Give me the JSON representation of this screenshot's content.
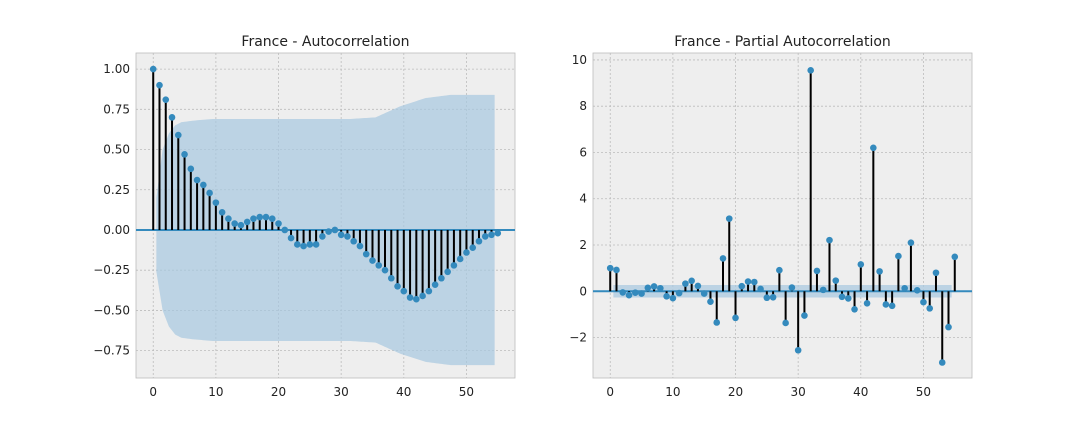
{
  "colors": {
    "axes_bg": "#eeeeee",
    "grid": "#bcbcbc",
    "stem": "#000000",
    "marker": "#348abd",
    "band": "#a6c8e0",
    "zero_line": "#348abd"
  },
  "chart_data": [
    {
      "type": "stem",
      "title": "France - Autocorrelation",
      "xlabel": "",
      "ylabel": "",
      "xlim": [
        -2.75,
        57.75
      ],
      "ylim": [
        -0.92,
        1.1
      ],
      "xticks": [
        0,
        10,
        20,
        30,
        40,
        50
      ],
      "yticks": [
        -0.75,
        -0.5,
        -0.25,
        0.0,
        0.25,
        0.5,
        0.75,
        1.0
      ],
      "ytick_labels": [
        "−0.75",
        "−0.50",
        "−0.25",
        "0.00",
        "0.25",
        "0.50",
        "0.75",
        "1.00"
      ],
      "xtick_labels": [
        "0",
        "10",
        "20",
        "30",
        "40",
        "50"
      ],
      "grid": true,
      "lags": [
        0,
        1,
        2,
        3,
        4,
        5,
        6,
        7,
        8,
        9,
        10,
        11,
        12,
        13,
        14,
        15,
        16,
        17,
        18,
        19,
        20,
        21,
        22,
        23,
        24,
        25,
        26,
        27,
        28,
        29,
        30,
        31,
        32,
        33,
        34,
        35,
        36,
        37,
        38,
        39,
        40,
        41,
        42,
        43,
        44,
        45,
        46,
        47,
        48,
        49,
        50,
        51,
        52,
        53,
        54,
        55
      ],
      "values": [
        1.0,
        0.9,
        0.81,
        0.7,
        0.59,
        0.47,
        0.38,
        0.31,
        0.28,
        0.23,
        0.17,
        0.11,
        0.07,
        0.04,
        0.03,
        0.05,
        0.07,
        0.08,
        0.08,
        0.07,
        0.04,
        0.0,
        -0.05,
        -0.09,
        -0.1,
        -0.09,
        -0.09,
        -0.04,
        -0.01,
        0.0,
        -0.03,
        -0.04,
        -0.07,
        -0.1,
        -0.15,
        -0.19,
        -0.22,
        -0.25,
        -0.3,
        -0.35,
        -0.38,
        -0.42,
        -0.43,
        -0.41,
        -0.38,
        -0.34,
        -0.3,
        -0.26,
        -0.22,
        -0.18,
        -0.14,
        -0.11,
        -0.07,
        -0.04,
        -0.03,
        -0.02
      ],
      "confint": {
        "lags": [
          1,
          2,
          3,
          4,
          5,
          7,
          10,
          15,
          20,
          28,
          32,
          36,
          40,
          44,
          48,
          52,
          55
        ],
        "upper": [
          0.2,
          0.5,
          0.6,
          0.65,
          0.67,
          0.68,
          0.69,
          0.69,
          0.69,
          0.69,
          0.69,
          0.7,
          0.77,
          0.82,
          0.84,
          0.84,
          0.84
        ],
        "lower": [
          -0.26,
          -0.5,
          -0.6,
          -0.65,
          -0.67,
          -0.68,
          -0.69,
          -0.69,
          -0.69,
          -0.69,
          -0.69,
          -0.7,
          -0.77,
          -0.82,
          -0.84,
          -0.84,
          -0.84
        ]
      }
    },
    {
      "type": "stem",
      "title": "France - Partial Autocorrelation",
      "xlabel": "",
      "ylabel": "",
      "xlim": [
        -2.75,
        57.75
      ],
      "ylim": [
        -3.75,
        10.3
      ],
      "xticks": [
        0,
        10,
        20,
        30,
        40,
        50
      ],
      "yticks": [
        -2,
        0,
        2,
        4,
        6,
        8,
        10
      ],
      "ytick_labels": [
        "−2",
        "0",
        "2",
        "4",
        "6",
        "8",
        "10"
      ],
      "xtick_labels": [
        "0",
        "10",
        "20",
        "30",
        "40",
        "50"
      ],
      "grid": true,
      "lags": [
        0,
        1,
        2,
        3,
        4,
        5,
        6,
        7,
        8,
        9,
        10,
        11,
        12,
        13,
        14,
        15,
        16,
        17,
        18,
        19,
        20,
        21,
        22,
        23,
        24,
        25,
        26,
        27,
        28,
        29,
        30,
        31,
        32,
        33,
        34,
        35,
        36,
        37,
        38,
        39,
        40,
        41,
        42,
        43,
        44,
        45,
        46,
        47,
        48,
        49,
        50,
        51,
        52,
        53,
        54,
        55
      ],
      "values": [
        1.0,
        0.92,
        -0.05,
        -0.17,
        -0.06,
        -0.1,
        0.15,
        0.21,
        0.13,
        -0.22,
        -0.3,
        -0.08,
        0.33,
        0.45,
        0.23,
        -0.1,
        -0.45,
        -1.35,
        1.42,
        3.14,
        -1.15,
        0.22,
        0.42,
        0.4,
        0.1,
        -0.28,
        -0.26,
        0.91,
        -1.37,
        0.16,
        -2.55,
        -1.05,
        9.55,
        0.88,
        0.06,
        2.21,
        0.46,
        -0.24,
        -0.31,
        -0.78,
        1.16,
        -0.52,
        6.2,
        0.86,
        -0.57,
        -0.63,
        1.52,
        0.13,
        2.1,
        0.04,
        -0.47,
        -0.74,
        0.8,
        -3.08,
        -1.55,
        1.49
      ],
      "confint": {
        "lags": [
          1,
          55
        ],
        "upper": [
          0.27,
          0.27
        ],
        "lower": [
          -0.27,
          -0.27
        ]
      }
    }
  ]
}
